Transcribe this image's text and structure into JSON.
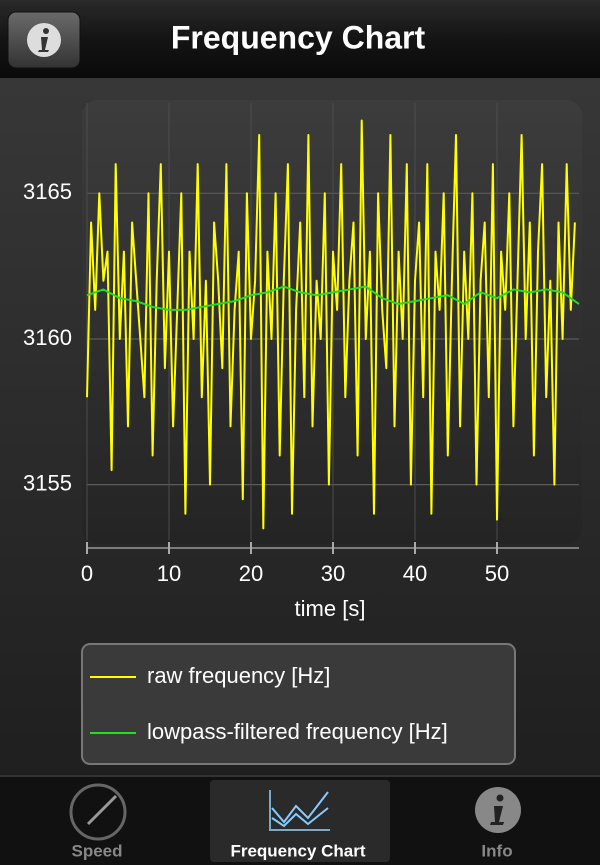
{
  "header": {
    "title": "Frequency Chart"
  },
  "chart_data": {
    "type": "line",
    "xlabel": "time [s]",
    "xlim": [
      0,
      60
    ],
    "xticks": [
      0,
      10,
      20,
      30,
      40,
      50
    ],
    "ylim": [
      3153.1,
      3168.1
    ],
    "yticks": [
      3155,
      3160,
      3165
    ],
    "grid": true,
    "series": [
      {
        "name": "raw frequency [Hz]",
        "color": "#ffff00",
        "x": [
          0,
          0.5,
          1,
          1.5,
          2,
          2.5,
          3,
          3.5,
          4,
          4.5,
          5,
          5.5,
          6,
          6.5,
          7,
          7.5,
          8,
          8.5,
          9,
          9.5,
          10,
          10.5,
          11,
          11.5,
          12,
          12.5,
          13,
          13.5,
          14,
          14.5,
          15,
          15.5,
          16,
          16.5,
          17,
          17.5,
          18,
          18.5,
          19,
          19.5,
          20,
          20.5,
          21,
          21.5,
          22,
          22.5,
          23,
          23.5,
          24,
          24.5,
          25,
          25.5,
          26,
          26.5,
          27,
          27.5,
          28,
          28.5,
          29,
          29.5,
          30,
          30.5,
          31,
          31.5,
          32,
          32.5,
          33,
          33.5,
          34,
          34.5,
          35,
          35.5,
          36,
          36.5,
          37,
          37.5,
          38,
          38.5,
          39,
          39.5,
          40,
          40.5,
          41,
          41.5,
          42,
          42.5,
          43,
          43.5,
          44,
          44.5,
          45,
          45.5,
          46,
          46.5,
          47,
          47.5,
          48,
          48.5,
          49,
          49.5,
          50,
          50.5,
          51,
          51.5,
          52,
          52.5,
          53,
          53.5,
          54,
          54.5,
          55,
          55.5,
          56,
          56.5,
          57,
          57.5,
          58,
          58.5,
          59,
          59.5
        ],
        "values": [
          3158,
          3164,
          3161,
          3165,
          3162,
          3163,
          3155.5,
          3166,
          3160,
          3163,
          3157,
          3164,
          3162,
          3160,
          3158,
          3165,
          3156,
          3162,
          3166,
          3159,
          3163,
          3157,
          3161,
          3165,
          3154,
          3163,
          3160,
          3166,
          3158,
          3162,
          3155,
          3164,
          3162,
          3159,
          3166,
          3157,
          3161,
          3163,
          3154.5,
          3165,
          3160,
          3162,
          3167,
          3153.5,
          3163,
          3160,
          3165,
          3156,
          3162,
          3166,
          3154,
          3161,
          3164,
          3158,
          3167,
          3157,
          3162,
          3160,
          3165,
          3155,
          3163,
          3161,
          3166,
          3158,
          3162,
          3164,
          3156,
          3167.5,
          3160,
          3163,
          3154,
          3165,
          3161,
          3159,
          3167,
          3157,
          3163,
          3160,
          3166,
          3155,
          3162,
          3164,
          3158,
          3166,
          3154,
          3163,
          3161,
          3165,
          3156,
          3162,
          3167,
          3157,
          3163,
          3160,
          3165,
          3155,
          3162,
          3164,
          3158,
          3166,
          3153.8,
          3163,
          3161,
          3165,
          3157,
          3162,
          3167,
          3160,
          3164,
          3156,
          3163,
          3166,
          3158,
          3162,
          3155,
          3164,
          3160,
          3166,
          3161,
          3164
        ]
      },
      {
        "name": "lowpass-filtered frequency [Hz]",
        "color": "#22dd22",
        "x": [
          0,
          2,
          4,
          6,
          8,
          10,
          12,
          14,
          16,
          18,
          20,
          22,
          24,
          26,
          28,
          30,
          32,
          34,
          36,
          38,
          40,
          42,
          44,
          46,
          48,
          50,
          52,
          54,
          56,
          58,
          60
        ],
        "values": [
          3161.5,
          3161.7,
          3161.4,
          3161.3,
          3161.1,
          3161.0,
          3161.0,
          3161.1,
          3161.2,
          3161.3,
          3161.5,
          3161.6,
          3161.8,
          3161.6,
          3161.5,
          3161.6,
          3161.7,
          3161.8,
          3161.4,
          3161.2,
          3161.3,
          3161.4,
          3161.5,
          3161.2,
          3161.6,
          3161.4,
          3161.7,
          3161.6,
          3161.7,
          3161.6,
          3161.2
        ]
      }
    ]
  },
  "tab_bar": {
    "tabs": [
      "Speed",
      "Frequency Chart",
      "Info"
    ]
  }
}
